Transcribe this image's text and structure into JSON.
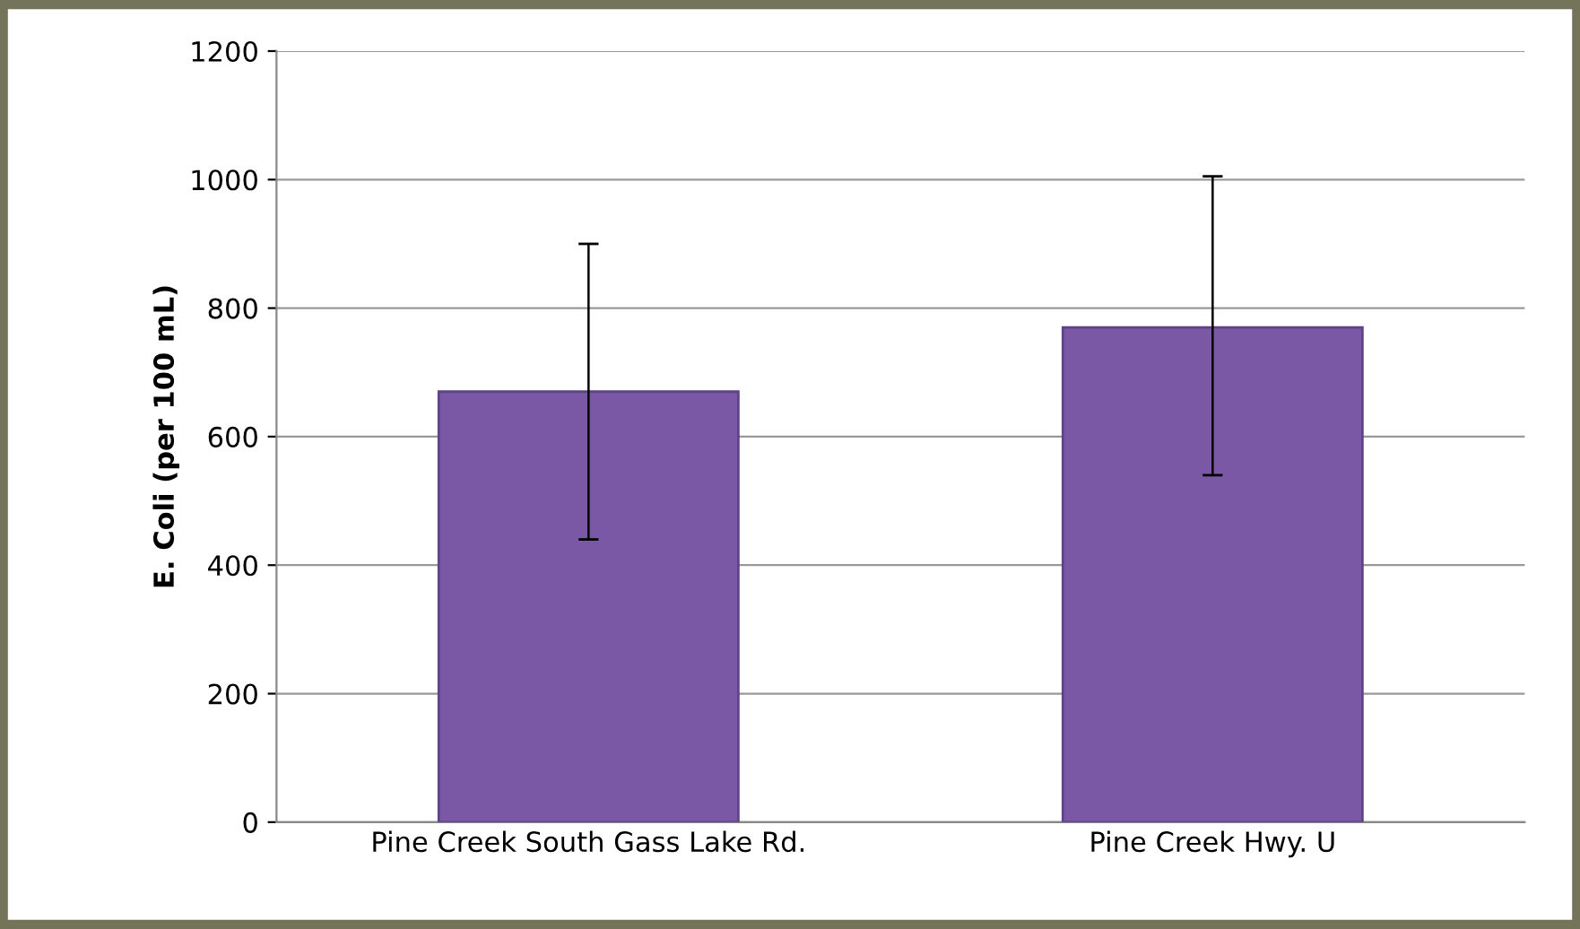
{
  "chart_data": {
    "type": "bar",
    "ylabel": "E. Coli (per 100 mL)",
    "categories": [
      "Pine Creek South Gass Lake Rd.",
      "Pine Creek Hwy. U"
    ],
    "values": [
      670,
      770
    ],
    "errors": [
      [
        440,
        900
      ],
      [
        540,
        1005
      ]
    ],
    "color": "#7a58a6",
    "ylim": [
      0,
      1200
    ],
    "yticks": [
      0,
      200,
      400,
      600,
      800,
      1000,
      1200
    ],
    "grid": "y"
  }
}
